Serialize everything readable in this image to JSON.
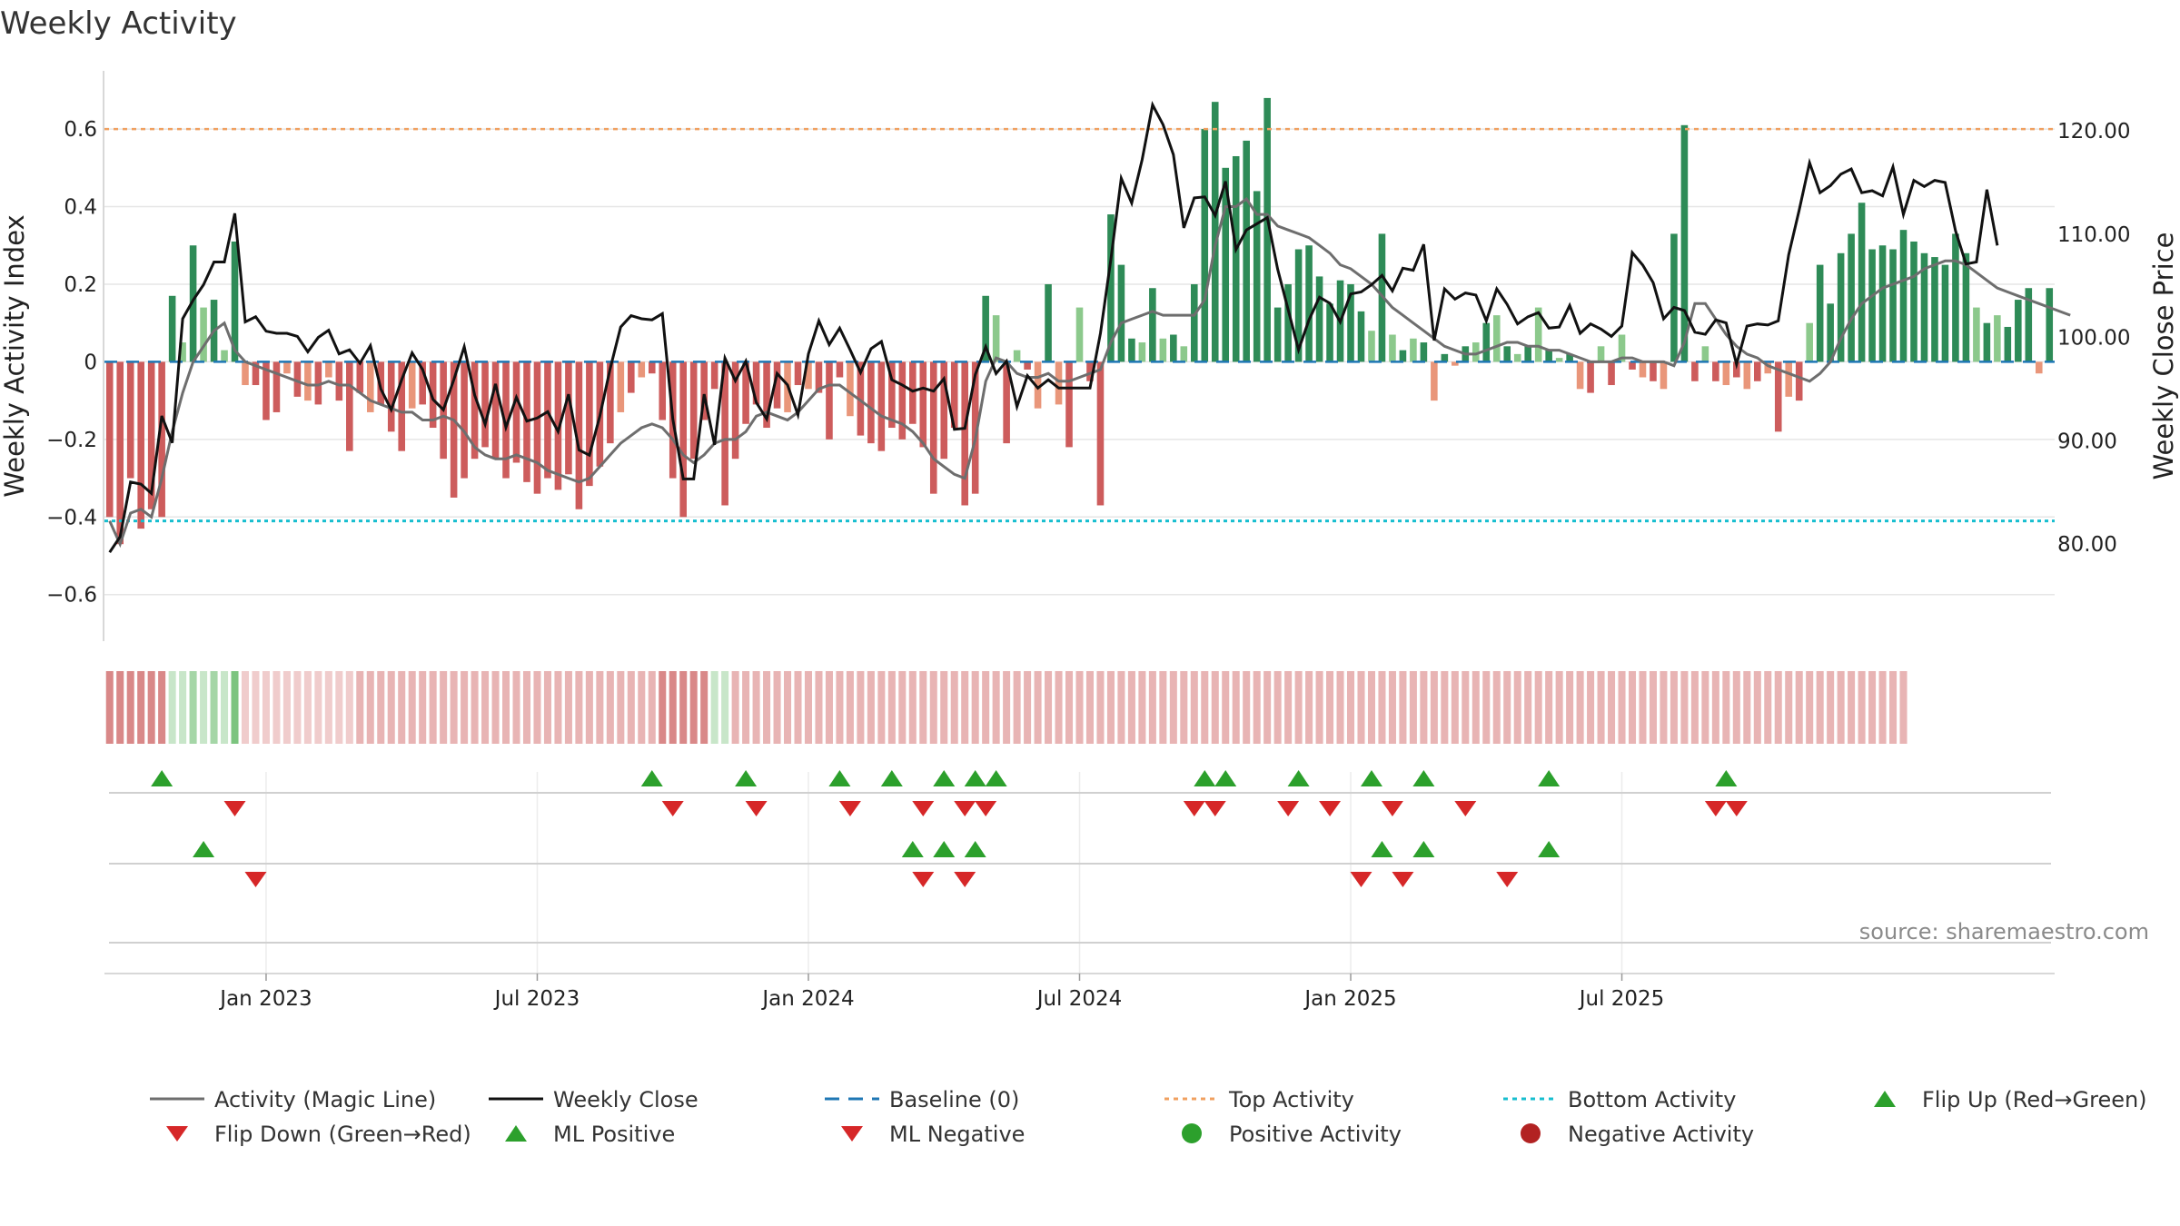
{
  "title": "Weekly Activity",
  "source": "source: sharemaestro.com",
  "colors": {
    "pos_strong": "#2e8b57",
    "pos_light": "#8cc98c",
    "neg_strong": "#cd5c5c",
    "neg_light": "#e9967a",
    "magic_line": "#6e6e6e",
    "close_line": "#111111",
    "baseline": "#1f77b4",
    "top_line": "#f0a060",
    "bottom_line": "#17becf",
    "flip_up": "#2ca02c",
    "flip_down": "#d62728",
    "grid": "#e6e6e6"
  },
  "chart_data": {
    "type": "bar+line",
    "title": "Weekly Activity",
    "ylabel": "Weekly Activity Index",
    "y2label": "Weekly Close Price",
    "ylim": [
      -0.72,
      0.75
    ],
    "y2lim": [
      70.6,
      125.8
    ],
    "yticks": [
      -0.6,
      -0.4,
      -0.2,
      0,
      0.2,
      0.4,
      0.6
    ],
    "ytick_labels": [
      "−0.6",
      "−0.4",
      "−0.2",
      "0",
      "0.2",
      "0.4",
      "0.6"
    ],
    "y2ticks": [
      80,
      90,
      100,
      110,
      120
    ],
    "y2tick_labels": [
      "80.00",
      "90.00",
      "100.00",
      "110.00",
      "120.00"
    ],
    "xtick_labels": [
      "Jan 2023",
      "Jul 2023",
      "Jan 2024",
      "Jul 2024",
      "Jan 2025",
      "Jul 2025"
    ],
    "xtick_weeks": [
      15,
      41,
      67,
      93,
      119,
      145
    ],
    "top_activity": 0.6,
    "bottom_activity": -0.41,
    "baseline": 0,
    "activity": [
      -0.4,
      -0.47,
      -0.3,
      -0.43,
      -0.38,
      -0.4,
      0.17,
      0.05,
      0.3,
      0.14,
      0.16,
      0.03,
      0.31,
      -0.06,
      -0.06,
      -0.15,
      -0.13,
      -0.03,
      -0.09,
      -0.1,
      -0.11,
      -0.04,
      -0.1,
      -0.23,
      -0.08,
      -0.13,
      -0.11,
      -0.18,
      -0.23,
      -0.12,
      -0.11,
      -0.17,
      -0.25,
      -0.35,
      -0.3,
      -0.25,
      -0.22,
      -0.25,
      -0.3,
      -0.26,
      -0.31,
      -0.34,
      -0.3,
      -0.33,
      -0.29,
      -0.38,
      -0.32,
      -0.27,
      -0.21,
      -0.13,
      -0.08,
      -0.04,
      -0.03,
      -0.15,
      -0.3,
      -0.4,
      -0.25,
      -0.15,
      -0.07,
      -0.37,
      -0.25,
      -0.16,
      -0.11,
      -0.17,
      -0.12,
      -0.13,
      -0.06,
      -0.07,
      -0.08,
      -0.2,
      -0.04,
      -0.14,
      -0.19,
      -0.21,
      -0.23,
      -0.17,
      -0.2,
      -0.16,
      -0.22,
      -0.34,
      -0.25,
      -0.17,
      -0.37,
      -0.34,
      0.17,
      0.12,
      -0.21,
      0.03,
      -0.02,
      -0.12,
      0.2,
      -0.11,
      -0.22,
      0.14,
      -0.05,
      -0.37,
      0.38,
      0.25,
      0.06,
      0.05,
      0.19,
      0.06,
      0.07,
      0.04,
      0.2,
      0.6,
      0.67,
      0.5,
      0.53,
      0.57,
      0.44,
      0.68,
      0.14,
      0.2,
      0.29,
      0.3,
      0.22,
      0.15,
      0.21,
      0.2,
      0.13,
      0.08,
      0.33,
      0.07,
      0.03,
      0.06,
      0.05,
      -0.1,
      0.02,
      -0.01,
      0.04,
      0.05,
      0.1,
      0.12,
      0.04,
      0.02,
      0.04,
      0.14,
      0.03,
      0.01,
      0.02,
      -0.07,
      -0.08,
      0.04,
      -0.06,
      0.07,
      -0.02,
      -0.04,
      -0.05,
      -0.07,
      0.33,
      0.61,
      -0.05,
      0.04,
      -0.05,
      -0.06,
      -0.04,
      -0.07,
      -0.05,
      -0.03,
      -0.18,
      -0.09,
      -0.1,
      0.1,
      0.25,
      0.15,
      0.28,
      0.33,
      0.41,
      0.29,
      0.3,
      0.29,
      0.34,
      0.31,
      0.28,
      0.27,
      0.25,
      0.33,
      0.28,
      0.14,
      0.1,
      0.12,
      0.09,
      0.16,
      0.19,
      -0.03,
      0.19
    ],
    "magic_line": [
      -0.41,
      -0.47,
      -0.39,
      -0.38,
      -0.4,
      -0.3,
      -0.18,
      -0.08,
      0.0,
      0.04,
      0.08,
      0.1,
      0.03,
      0.0,
      -0.01,
      -0.02,
      -0.03,
      -0.04,
      -0.05,
      -0.06,
      -0.06,
      -0.05,
      -0.06,
      -0.06,
      -0.08,
      -0.1,
      -0.11,
      -0.12,
      -0.13,
      -0.13,
      -0.15,
      -0.15,
      -0.14,
      -0.15,
      -0.18,
      -0.22,
      -0.24,
      -0.25,
      -0.25,
      -0.24,
      -0.25,
      -0.26,
      -0.28,
      -0.29,
      -0.3,
      -0.31,
      -0.3,
      -0.27,
      -0.24,
      -0.21,
      -0.19,
      -0.17,
      -0.16,
      -0.17,
      -0.2,
      -0.24,
      -0.26,
      -0.24,
      -0.21,
      -0.2,
      -0.2,
      -0.18,
      -0.14,
      -0.13,
      -0.14,
      -0.15,
      -0.13,
      -0.1,
      -0.07,
      -0.06,
      -0.06,
      -0.08,
      -0.1,
      -0.12,
      -0.14,
      -0.15,
      -0.16,
      -0.18,
      -0.21,
      -0.25,
      -0.27,
      -0.29,
      -0.3,
      -0.2,
      -0.05,
      0.01,
      0.0,
      -0.03,
      -0.04,
      -0.04,
      -0.03,
      -0.05,
      -0.05,
      -0.04,
      -0.03,
      -0.02,
      0.05,
      0.1,
      0.11,
      0.12,
      0.13,
      0.12,
      0.12,
      0.12,
      0.12,
      0.16,
      0.3,
      0.4,
      0.4,
      0.42,
      0.38,
      0.38,
      0.35,
      0.34,
      0.33,
      0.32,
      0.3,
      0.28,
      0.25,
      0.24,
      0.22,
      0.2,
      0.17,
      0.14,
      0.12,
      0.1,
      0.08,
      0.06,
      0.04,
      0.03,
      0.02,
      0.02,
      0.03,
      0.04,
      0.05,
      0.05,
      0.04,
      0.04,
      0.03,
      0.03,
      0.02,
      0.01,
      0.0,
      0.0,
      0.0,
      0.01,
      0.01,
      0.0,
      0.0,
      0.0,
      -0.01,
      0.05,
      0.15,
      0.15,
      0.11,
      0.07,
      0.04,
      0.02,
      0.01,
      -0.01,
      -0.02,
      -0.03,
      -0.04,
      -0.05,
      -0.03,
      0.0,
      0.06,
      0.11,
      0.15,
      0.17,
      0.19,
      0.2,
      0.21,
      0.22,
      0.24,
      0.25,
      0.26,
      0.26,
      0.25,
      0.23,
      0.21,
      0.19,
      0.18,
      0.17,
      0.16,
      0.15,
      0.14,
      0.13,
      0.12
    ],
    "close": [
      79.2,
      80.7,
      86.0,
      85.8,
      84.9,
      92.4,
      89.8,
      101.8,
      103.6,
      105.1,
      107.3,
      107.3,
      112.0,
      101.5,
      102.0,
      100.6,
      100.4,
      100.4,
      100.1,
      98.6,
      100.0,
      100.7,
      98.4,
      98.8,
      97.5,
      99.2,
      95.0,
      93.0,
      95.9,
      98.5,
      96.9,
      94.0,
      93.0,
      95.9,
      99.1,
      94.4,
      91.6,
      95.5,
      91.3,
      94.2,
      91.9,
      92.2,
      92.8,
      90.9,
      94.5,
      89.1,
      88.6,
      92.4,
      97.0,
      101.0,
      102.1,
      101.8,
      101.7,
      102.3,
      92.1,
      86.3,
      86.3,
      94.5,
      89.6,
      98.0,
      95.8,
      97.7,
      93.7,
      92.1,
      96.5,
      95.4,
      92.5,
      98.4,
      101.6,
      99.3,
      100.9,
      98.8,
      96.6,
      98.9,
      99.6,
      95.9,
      95.4,
      94.8,
      95.1,
      94.8,
      96.0,
      91.1,
      91.2,
      96.4,
      99.1,
      96.5,
      97.7,
      93.3,
      96.3,
      95.1,
      95.9,
      95.1,
      95.1,
      95.1,
      95.1,
      100.4,
      107.5,
      115.4,
      113.0,
      117.2,
      122.5,
      120.6,
      117.7,
      110.6,
      113.5,
      113.6,
      111.8,
      115.1,
      108.5,
      110.4,
      111.0,
      111.6,
      106.6,
      102.7,
      98.8,
      101.7,
      103.9,
      103.3,
      101.5,
      104.2,
      104.4,
      105.1,
      106.0,
      104.5,
      106.7,
      106.5,
      109.0,
      99.7,
      104.7,
      103.7,
      104.3,
      104.1,
      101.6,
      104.7,
      103.2,
      101.3,
      102.0,
      102.4,
      100.9,
      101.0,
      103.1,
      100.4,
      101.3,
      100.8,
      100.1,
      101.1,
      108.2,
      107.0,
      105.3,
      101.8,
      102.9,
      102.6,
      100.5,
      100.3,
      101.7,
      101.4,
      97.4,
      101.1,
      101.3,
      101.2,
      101.6,
      108.0,
      112.3,
      116.9,
      114.0,
      114.7,
      115.8,
      116.3,
      114.0,
      114.2,
      113.7,
      116.5,
      111.9,
      115.2,
      114.6,
      115.2,
      115.0,
      110.3,
      107.1,
      107.3,
      114.3,
      108.9
    ],
    "strip_colors": [
      "#d98888",
      "#d98888",
      "#d98888",
      "#d98888",
      "#d98888",
      "#d98888",
      "#c8e6c9",
      "#c8e6c9",
      "#a5d6a7",
      "#c8e6c9",
      "#a5d6a7",
      "#c8e6c9",
      "#7cc47f",
      "#f0cccc",
      "#f0cccc",
      "#f0cccc",
      "#f0cccc",
      "#f0cccc",
      "#f0cccc",
      "#f0cccc",
      "#f0cccc",
      "#f0cccc",
      "#f0cccc",
      "#f0cccc",
      "#e8b4b4",
      "#e8b4b4",
      "#e8b4b4",
      "#e8b4b4",
      "#e8b4b4",
      "#e8b4b4",
      "#e8b4b4",
      "#e8b4b4",
      "#e8b4b4",
      "#e8b4b4",
      "#e8b4b4",
      "#e8b4b4",
      "#e8b4b4",
      "#e8b4b4",
      "#e8b4b4",
      "#e8b4b4",
      "#e8b4b4",
      "#e8b4b4",
      "#e8b4b4",
      "#e8b4b4",
      "#e8b4b4",
      "#e8b4b4",
      "#e8b4b4",
      "#e8b4b4",
      "#e8b4b4",
      "#e8b4b4",
      "#e8b4b4",
      "#e8b4b4",
      "#e8b4b4",
      "#d98888",
      "#d98888",
      "#d98888",
      "#d98888",
      "#d98888",
      "#c8e6c9",
      "#c8e6c9",
      "#e8b4b4",
      "#e8b4b4",
      "#e8b4b4",
      "#e8b4b4",
      "#e8b4b4",
      "#e8b4b4",
      "#e8b4b4",
      "#e8b4b4",
      "#e8b4b4",
      "#e8b4b4",
      "#e8b4b4",
      "#e8b4b4",
      "#e8b4b4",
      "#e8b4b4",
      "#e8b4b4",
      "#e8b4b4",
      "#e8b4b4",
      "#e8b4b4",
      "#e8b4b4",
      "#e8b4b4",
      "#e8b4b4",
      "#e8b4b4",
      "#e8b4b4",
      "#e8b4b4",
      "#e8b4b4",
      "#e8b4b4",
      "#e8b4b4",
      "#e8b4b4",
      "#e8b4b4",
      "#e8b4b4",
      "#e8b4b4",
      "#e8b4b4",
      "#e8b4b4",
      "#e8b4b4",
      "#e8b4b4",
      "#e8b4b4",
      "#e8b4b4",
      "#e8b4b4",
      "#e8b4b4",
      "#e8b4b4",
      "#e8b4b4",
      "#e8b4b4",
      "#e8b4b4",
      "#e8b4b4",
      "#e8b4b4",
      "#e8b4b4",
      "#e8b4b4",
      "#e8b4b4",
      "#e8b4b4",
      "#e8b4b4",
      "#e8b4b4",
      "#e8b4b4",
      "#e8b4b4",
      "#e8b4b4",
      "#e8b4b4",
      "#e8b4b4",
      "#e8b4b4",
      "#e8b4b4",
      "#e8b4b4",
      "#e8b4b4",
      "#e8b4b4",
      "#e8b4b4",
      "#e8b4b4",
      "#e8b4b4",
      "#e8b4b4",
      "#e8b4b4",
      "#e8b4b4",
      "#e8b4b4",
      "#e8b4b4",
      "#e8b4b4",
      "#e8b4b4",
      "#e8b4b4",
      "#e8b4b4",
      "#e8b4b4",
      "#e8b4b4",
      "#e8b4b4",
      "#e8b4b4",
      "#e8b4b4",
      "#e8b4b4",
      "#e8b4b4",
      "#e8b4b4",
      "#e8b4b4",
      "#e8b4b4",
      "#e8b4b4",
      "#e8b4b4",
      "#e8b4b4",
      "#e8b4b4",
      "#e8b4b4",
      "#e8b4b4",
      "#e8b4b4",
      "#e8b4b4",
      "#e8b4b4",
      "#e8b4b4",
      "#e8b4b4",
      "#e8b4b4",
      "#e8b4b4",
      "#e8b4b4",
      "#e8b4b4",
      "#e8b4b4",
      "#e8b4b4",
      "#e8b4b4",
      "#e8b4b4",
      "#e8b4b4",
      "#e8b4b4",
      "#e8b4b4",
      "#e8b4b4",
      "#e8b4b4",
      "#e8b4b4",
      "#e8b4b4",
      "#e8b4b4",
      "#e8b4b4",
      "#e8b4b4",
      "#e8b4b4"
    ],
    "flip_up_weeks": [
      5,
      52,
      61,
      70,
      75,
      80,
      83,
      85,
      105,
      107,
      114,
      121,
      126,
      138,
      155
    ],
    "flip_down_weeks": [
      12,
      54,
      62,
      71,
      78,
      82,
      84,
      104,
      106,
      113,
      117,
      123,
      130,
      154,
      156
    ],
    "ml_positive_weeks": [
      9,
      77,
      80,
      83,
      122,
      126,
      138
    ],
    "ml_negative_weeks": [
      14,
      78,
      82,
      120,
      124,
      134
    ]
  },
  "legend": {
    "items": [
      {
        "label": "Activity (Magic Line)",
        "kind": "line",
        "color": "#6e6e6e"
      },
      {
        "label": "Weekly Close",
        "kind": "line",
        "color": "#111111"
      },
      {
        "label": "Baseline (0)",
        "kind": "dashed",
        "color": "#1f77b4"
      },
      {
        "label": "Top Activity",
        "kind": "dotted",
        "color": "#f0a060"
      },
      {
        "label": "Bottom Activity",
        "kind": "dotted",
        "color": "#17becf"
      },
      {
        "label": "Flip Up (Red→Green)",
        "kind": "tri-up",
        "color": "#2ca02c"
      },
      {
        "label": "Flip Down (Green→Red)",
        "kind": "tri-down",
        "color": "#d62728"
      },
      {
        "label": "ML Positive",
        "kind": "tri-up",
        "color": "#2ca02c"
      },
      {
        "label": "ML Negative",
        "kind": "tri-down",
        "color": "#d62728"
      },
      {
        "label": "Positive Activity",
        "kind": "dot",
        "color": "#2ca02c"
      },
      {
        "label": "Negative Activity",
        "kind": "dot",
        "color": "#b22222"
      }
    ]
  }
}
